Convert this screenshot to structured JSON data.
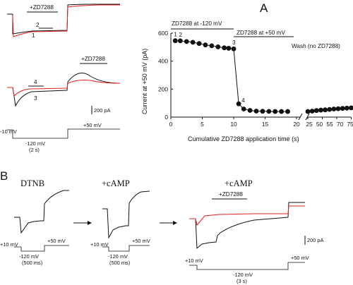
{
  "panel_a": {
    "letter": "A",
    "top_drug_label": "+ZD7288",
    "trace_label_2": "2",
    "trace_label_1": "1",
    "mid_drug_label": "+ZD7288",
    "trace_label_4": "4",
    "trace_label_3": "3",
    "scale_label": "200 pA",
    "protocol": {
      "hold": "-10 mV",
      "step": "-120 mV",
      "step_duration": "(2 s)",
      "tail": "+50 mV"
    }
  },
  "panel_b": {
    "letter": "B",
    "sub1_title": "DTNB",
    "sub2_title": "+cAMP",
    "sub3_title": "+cAMP",
    "sub3_drug_label": "+ZD7288",
    "scale_label": "200 pA",
    "protocol_1": {
      "hold": "+10 mV",
      "tail": "+50 mV",
      "step": "-120 mV",
      "duration": "(500 ms)"
    },
    "protocol_2": {
      "hold": "+10 mV",
      "tail": "+50 mV",
      "step": "-120 mV",
      "duration": "(500 ms)"
    },
    "protocol_3": {
      "hold": "+10 mV",
      "tail": "+50 mV",
      "step": "-120 mV",
      "duration": "(3 s)"
    }
  },
  "chart_data": {
    "type": "scatter",
    "title": "",
    "xlabel": "Cumulative ZD7288 application time (s)",
    "ylabel": "Current at +50 mV (pA)",
    "ylim": [
      0,
      600
    ],
    "y_ticks": [
      0,
      200,
      400,
      600
    ],
    "x_ticks_left": [
      0,
      5,
      10,
      15,
      20
    ],
    "x_ticks_right": [
      25,
      30,
      35,
      40
    ],
    "x_tick_labels": [
      "0",
      "5",
      "10",
      "15",
      "20",
      "25",
      "50",
      "55",
      "70",
      "75"
    ],
    "x_break": true,
    "grid": false,
    "legend": "none",
    "bar_annotations": [
      {
        "text": "ZD7288 at -120 mV",
        "x_start": 0,
        "x_end": 10
      },
      {
        "text": "ZD7288 at +50 mV",
        "x_start": 10,
        "x_end": 20
      }
    ],
    "wash_label": "Wash (no ZD7288)",
    "point_labels": [
      {
        "text": "1",
        "x": 0.7,
        "y": 546
      },
      {
        "text": "2",
        "x": 1.5,
        "y": 545
      },
      {
        "text": "3",
        "x": 10,
        "y": 488
      },
      {
        "text": "4",
        "x": 10.8,
        "y": 95
      }
    ],
    "series": [
      {
        "values_segment": "zd7288",
        "x": [
          0.7,
          1.5,
          2.5,
          3.5,
          4.5,
          5.5,
          6.5,
          7.5,
          8.5,
          9.2,
          10.0,
          10.8,
          11.6,
          12.6,
          13.6,
          14.6,
          15.6,
          16.6,
          17.6,
          18.6
        ],
        "y": [
          546,
          545,
          540,
          535,
          526,
          516,
          510,
          502,
          495,
          492,
          488,
          95,
          58,
          48,
          43,
          42,
          41,
          40,
          40,
          40
        ]
      },
      {
        "values_segment": "wash",
        "x": [
          25.0,
          26.5,
          28.0,
          29.5,
          31.0,
          32.5,
          34.0,
          35.5,
          37.0,
          38.5,
          40.0
        ],
        "y": [
          40,
          43,
          47,
          50,
          52,
          55,
          58,
          60,
          62,
          64,
          66
        ]
      }
    ],
    "colors": {
      "black": "#111111",
      "red": "#e02020"
    }
  }
}
